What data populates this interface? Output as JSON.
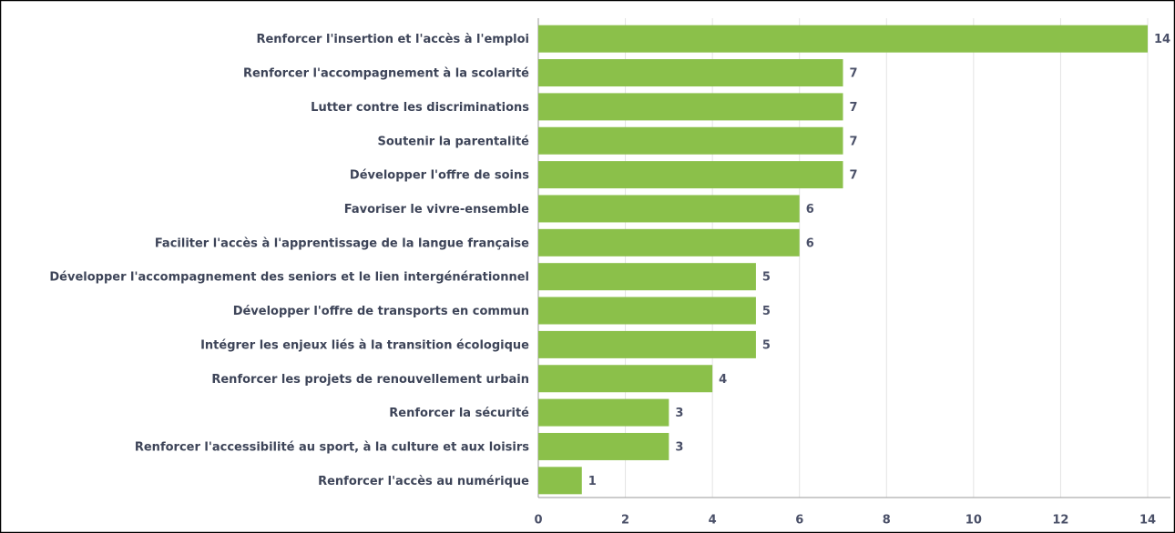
{
  "chart_data": {
    "type": "bar",
    "orientation": "horizontal",
    "categories": [
      "Renforcer l'insertion et l'accès à l'emploi",
      "Renforcer l'accompagnement à la scolarité",
      "Lutter contre les discriminations",
      "Soutenir la parentalité",
      "Développer l'offre de soins",
      "Favoriser le vivre-ensemble",
      "Faciliter l'accès à l'apprentissage de la langue française",
      "Développer l'accompagnement des seniors et le lien intergénérationnel",
      "Développer l'offre de transports en commun",
      "Intégrer les enjeux liés à la transition écologique",
      "Renforcer les projets de renouvellement urbain",
      "Renforcer la sécurité",
      "Renforcer l'accessibilité au sport, à la culture et aux loisirs",
      "Renforcer l'accès au numérique"
    ],
    "values": [
      14,
      7,
      7,
      7,
      7,
      6,
      6,
      5,
      5,
      5,
      4,
      3,
      3,
      1
    ],
    "color": "#8bc04a",
    "xlim": [
      0,
      14
    ],
    "xticks": [
      0,
      2,
      4,
      6,
      8,
      10,
      12,
      14
    ],
    "grid": true
  }
}
